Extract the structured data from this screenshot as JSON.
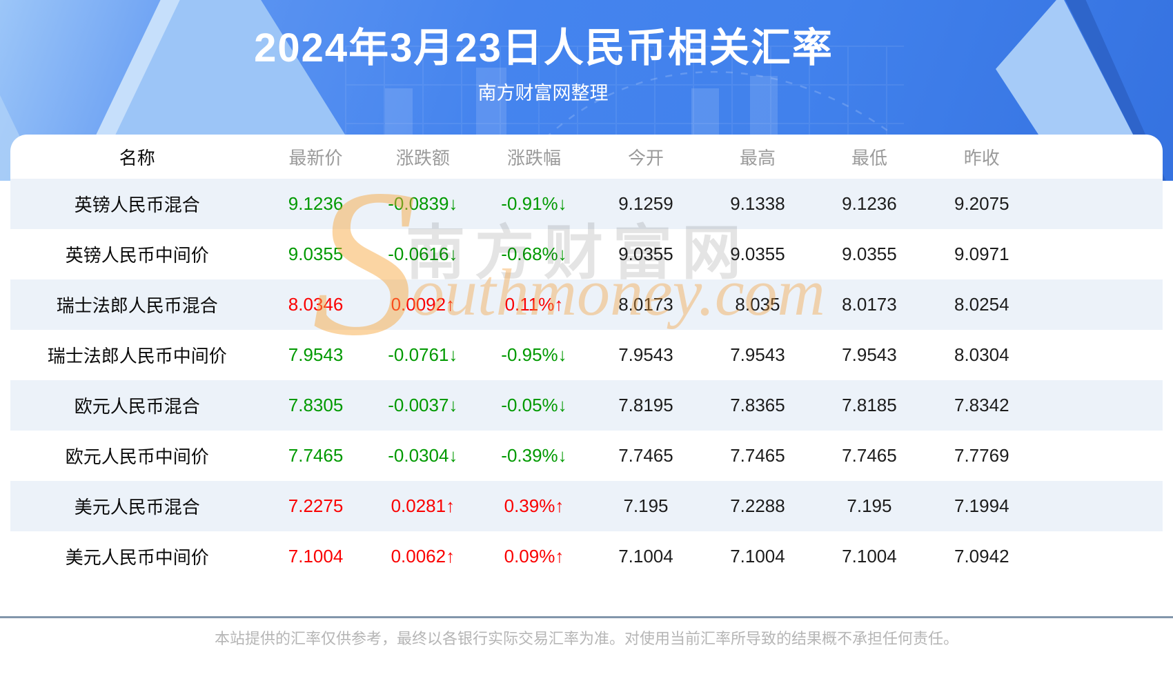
{
  "hero": {
    "title": "2024年3月23日人民币相关汇率",
    "subtitle": "南方财富网整理"
  },
  "table": {
    "headers": [
      "名称",
      "最新价",
      "涨跌额",
      "涨跌幅",
      "今开",
      "最高",
      "最低",
      "昨收"
    ],
    "rows": [
      {
        "name": "英镑人民币混合",
        "latest": "9.1236",
        "change": "-0.0839↓",
        "pct": "-0.91%↓",
        "open": "9.1259",
        "high": "9.1338",
        "low": "9.1236",
        "prev": "9.2075",
        "trend": "down"
      },
      {
        "name": "英镑人民币中间价",
        "latest": "9.0355",
        "change": "-0.0616↓",
        "pct": "-0.68%↓",
        "open": "9.0355",
        "high": "9.0355",
        "low": "9.0355",
        "prev": "9.0971",
        "trend": "down"
      },
      {
        "name": "瑞士法郎人民币混合",
        "latest": "8.0346",
        "change": "0.0092↑",
        "pct": "0.11%↑",
        "open": "8.0173",
        "high": "8.035",
        "low": "8.0173",
        "prev": "8.0254",
        "trend": "up"
      },
      {
        "name": "瑞士法郎人民币中间价",
        "latest": "7.9543",
        "change": "-0.0761↓",
        "pct": "-0.95%↓",
        "open": "7.9543",
        "high": "7.9543",
        "low": "7.9543",
        "prev": "8.0304",
        "trend": "down"
      },
      {
        "name": "欧元人民币混合",
        "latest": "7.8305",
        "change": "-0.0037↓",
        "pct": "-0.05%↓",
        "open": "7.8195",
        "high": "7.8365",
        "low": "7.8185",
        "prev": "7.8342",
        "trend": "down"
      },
      {
        "name": "欧元人民币中间价",
        "latest": "7.7465",
        "change": "-0.0304↓",
        "pct": "-0.39%↓",
        "open": "7.7465",
        "high": "7.7465",
        "low": "7.7465",
        "prev": "7.7769",
        "trend": "down"
      },
      {
        "name": "美元人民币混合",
        "latest": "7.2275",
        "change": "0.0281↑",
        "pct": "0.39%↑",
        "open": "7.195",
        "high": "7.2288",
        "low": "7.195",
        "prev": "7.1994",
        "trend": "up"
      },
      {
        "name": "美元人民币中间价",
        "latest": "7.1004",
        "change": "0.0062↑",
        "pct": "0.09%↑",
        "open": "7.1004",
        "high": "7.1004",
        "low": "7.1004",
        "prev": "7.0942",
        "trend": "up"
      }
    ]
  },
  "watermark": {
    "s": "S",
    "cn": "南方财富网",
    "en": "outhmoney.com"
  },
  "footer": {
    "disclaimer": "本站提供的汇率仅供参考，最终以各银行实际交易汇率为准。对使用当前汇率所导致的结果概不承担任何责任。"
  },
  "colors": {
    "up_red": "#fa0000",
    "down_green": "#009900",
    "banner_blue": "#4181ec",
    "alt_row": "#ecf2f9",
    "header_gray": "#9a9a9a",
    "divider": "#8296ab"
  },
  "chart_data": {
    "type": "table",
    "title": "2024年3月23日人民币相关汇率",
    "subtitle": "南方财富网整理",
    "columns": [
      "名称",
      "最新价",
      "涨跌额",
      "涨跌幅",
      "今开",
      "最高",
      "最低",
      "昨收"
    ],
    "rows": [
      [
        "英镑人民币混合",
        "9.1236",
        "-0.0839↓",
        "-0.91%↓",
        "9.1259",
        "9.1338",
        "9.1236",
        "9.2075"
      ],
      [
        "英镑人民币中间价",
        "9.0355",
        "-0.0616↓",
        "-0.68%↓",
        "9.0355",
        "9.0355",
        "9.0355",
        "9.0971"
      ],
      [
        "瑞士法郎人民币混合",
        "8.0346",
        "0.0092↑",
        "0.11%↑",
        "8.0173",
        "8.035",
        "8.0173",
        "8.0254"
      ],
      [
        "瑞士法郎人民币中间价",
        "7.9543",
        "-0.0761↓",
        "-0.95%↓",
        "7.9543",
        "7.9543",
        "7.9543",
        "8.0304"
      ],
      [
        "欧元人民币混合",
        "7.8305",
        "-0.0037↓",
        "-0.05%↓",
        "7.8195",
        "7.8365",
        "7.8185",
        "7.8342"
      ],
      [
        "欧元人民币中间价",
        "7.7465",
        "-0.0304↓",
        "-0.39%↓",
        "7.7465",
        "7.7465",
        "7.7465",
        "7.7769"
      ],
      [
        "美元人民币混合",
        "7.2275",
        "0.0281↑",
        "0.39%↑",
        "7.195",
        "7.2288",
        "7.195",
        "7.1994"
      ],
      [
        "美元人民币中间价",
        "7.1004",
        "0.0062↑",
        "0.09%↑",
        "7.1004",
        "7.1004",
        "7.1004",
        "7.0942"
      ]
    ],
    "legend": "red = 上涨(up), green = 下跌(down)"
  }
}
